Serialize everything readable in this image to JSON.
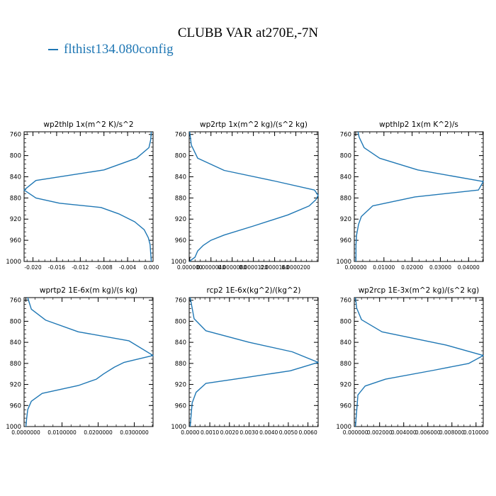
{
  "page": {
    "title": "CLUBB VAR at270E,-7N",
    "legend_label": "flthist134.080config",
    "line_color": "#1f77b4"
  },
  "chart_data": [
    {
      "type": "line",
      "title": "wp2thlp 1x(m^2 K)/s^2",
      "y_ticks": [
        "760",
        "800",
        "840",
        "880",
        "920",
        "960",
        "1000"
      ],
      "y_range": [
        755,
        1000
      ],
      "x_ticks": [
        "-0.020",
        "-0.016",
        "-0.012",
        "-0.008",
        "-0.004",
        "0.000"
      ],
      "x_range": [
        -0.0215,
        0.0003
      ],
      "series": [
        {
          "x": [
            0.0,
            -0.0001,
            -0.0004,
            -0.0025,
            -0.008,
            -0.0195,
            -0.0215,
            -0.0195,
            -0.0155,
            -0.0085,
            -0.0055,
            -0.0028,
            -0.0012,
            -0.0005,
            -0.0002,
            0.0
          ],
          "y": [
            755,
            770,
            785,
            805,
            827,
            847,
            865,
            880,
            890,
            898,
            910,
            925,
            940,
            955,
            968,
            1000
          ]
        }
      ]
    },
    {
      "type": "line",
      "title": "wp2rtp 1x(m^2 kg)/(s^2 kg)",
      "y_ticks": [
        "760",
        "800",
        "840",
        "880",
        "920",
        "960",
        "1000"
      ],
      "y_range": [
        755,
        1000
      ],
      "x_ticks": [
        "0.000000",
        "0.0000040",
        "0.0000080",
        "0.0000120",
        "0.0000160",
        "0.0000200"
      ],
      "x_range": [
        -1e-07,
        2.42e-05
      ],
      "series": [
        {
          "x": [
            0.0,
            3e-07,
            1.5e-06,
            6.5e-06,
            1.6e-05,
            2.35e-05,
            2.42e-05,
            2.38e-05,
            2.25e-05,
            1.85e-05,
            1.2e-05,
            6.5e-06,
            4e-06,
            2.5e-06,
            1.5e-06,
            1e-06,
            3e-07,
            0.0
          ],
          "y": [
            755,
            780,
            805,
            828,
            848,
            865,
            875,
            883,
            895,
            912,
            933,
            950,
            960,
            970,
            980,
            992,
            997,
            1000
          ]
        }
      ]
    },
    {
      "type": "line",
      "title": "wpthlp2 1x(m K^2)/s",
      "y_ticks": [
        "760",
        "800",
        "840",
        "880",
        "920",
        "960",
        "1000"
      ],
      "y_range": [
        755,
        1000
      ],
      "x_ticks": [
        "0.00000",
        "0.01000",
        "0.02000",
        "0.03000",
        "0.04000"
      ],
      "x_range": [
        -0.0005,
        0.0452
      ],
      "series": [
        {
          "x": [
            0.0008,
            0.0012,
            0.003,
            0.0085,
            0.022,
            0.0452,
            0.0435,
            0.021,
            0.006,
            0.002,
            0.001,
            0.0003,
            0.0001,
            0.0001
          ],
          "y": [
            755,
            765,
            785,
            805,
            827,
            849,
            865,
            878,
            895,
            915,
            930,
            950,
            970,
            1000
          ]
        }
      ]
    },
    {
      "type": "line",
      "title": "wprtp2 1E-6x(m kg)/(s kg)",
      "y_ticks": [
        "760",
        "800",
        "840",
        "880",
        "920",
        "960",
        "1000"
      ],
      "y_range": [
        755,
        1000
      ],
      "x_ticks": [
        "0.0000000",
        "0.0100000",
        "0.0200000",
        "0.0300000"
      ],
      "x_range": [
        -0.0005,
        0.0352
      ],
      "series": [
        {
          "x": [
            0.0005,
            0.0015,
            0.0055,
            0.0145,
            0.0285,
            0.0352,
            0.0272,
            0.0245,
            0.0215,
            0.0195,
            0.0145,
            0.0045,
            0.0015,
            0.0005,
            0.0002,
            0.0
          ],
          "y": [
            755,
            777,
            798,
            820,
            837,
            865,
            878,
            887,
            900,
            910,
            922,
            937,
            952,
            968,
            985,
            1000
          ]
        }
      ]
    },
    {
      "type": "line",
      "title": "rcp2 1E-6x(kg^2)/(kg^2)",
      "y_ticks": [
        "760",
        "800",
        "840",
        "880",
        "920",
        "960",
        "1000"
      ],
      "y_range": [
        755,
        1000
      ],
      "x_ticks": [
        "0.0000",
        "0.0010",
        "0.0020",
        "0.0030",
        "0.0040",
        "0.0050",
        "0.0060"
      ],
      "x_range": [
        -5e-05,
        0.00652
      ],
      "series": [
        {
          "x": [
            0.0,
            0.0001,
            0.0002,
            0.0008,
            0.003,
            0.0052,
            0.00652,
            0.0051,
            0.0028,
            0.0008,
            0.0003,
            0.0001,
            0.0
          ],
          "y": [
            755,
            775,
            795,
            818,
            840,
            858,
            878,
            894,
            907,
            918,
            935,
            955,
            1000
          ]
        }
      ]
    },
    {
      "type": "line",
      "title": "wp2rcp 1E-3x(m^2 kg)/(s^2 kg)",
      "y_ticks": [
        "760",
        "800",
        "840",
        "880",
        "920",
        "960",
        "1000"
      ],
      "y_range": [
        755,
        1000
      ],
      "x_ticks": [
        "0.000000",
        "0.002000",
        "0.004000",
        "0.006000",
        "0.008000",
        "0.010000"
      ],
      "x_range": [
        -0.0001,
        0.0106
      ],
      "series": [
        {
          "x": [
            0.0,
            0.0001,
            0.0005,
            0.0022,
            0.0075,
            0.0106,
            0.0094,
            0.0065,
            0.0025,
            0.0008,
            0.0002,
            0.0
          ],
          "y": [
            755,
            775,
            797,
            820,
            845,
            865,
            880,
            893,
            910,
            923,
            940,
            1000
          ]
        }
      ]
    }
  ]
}
